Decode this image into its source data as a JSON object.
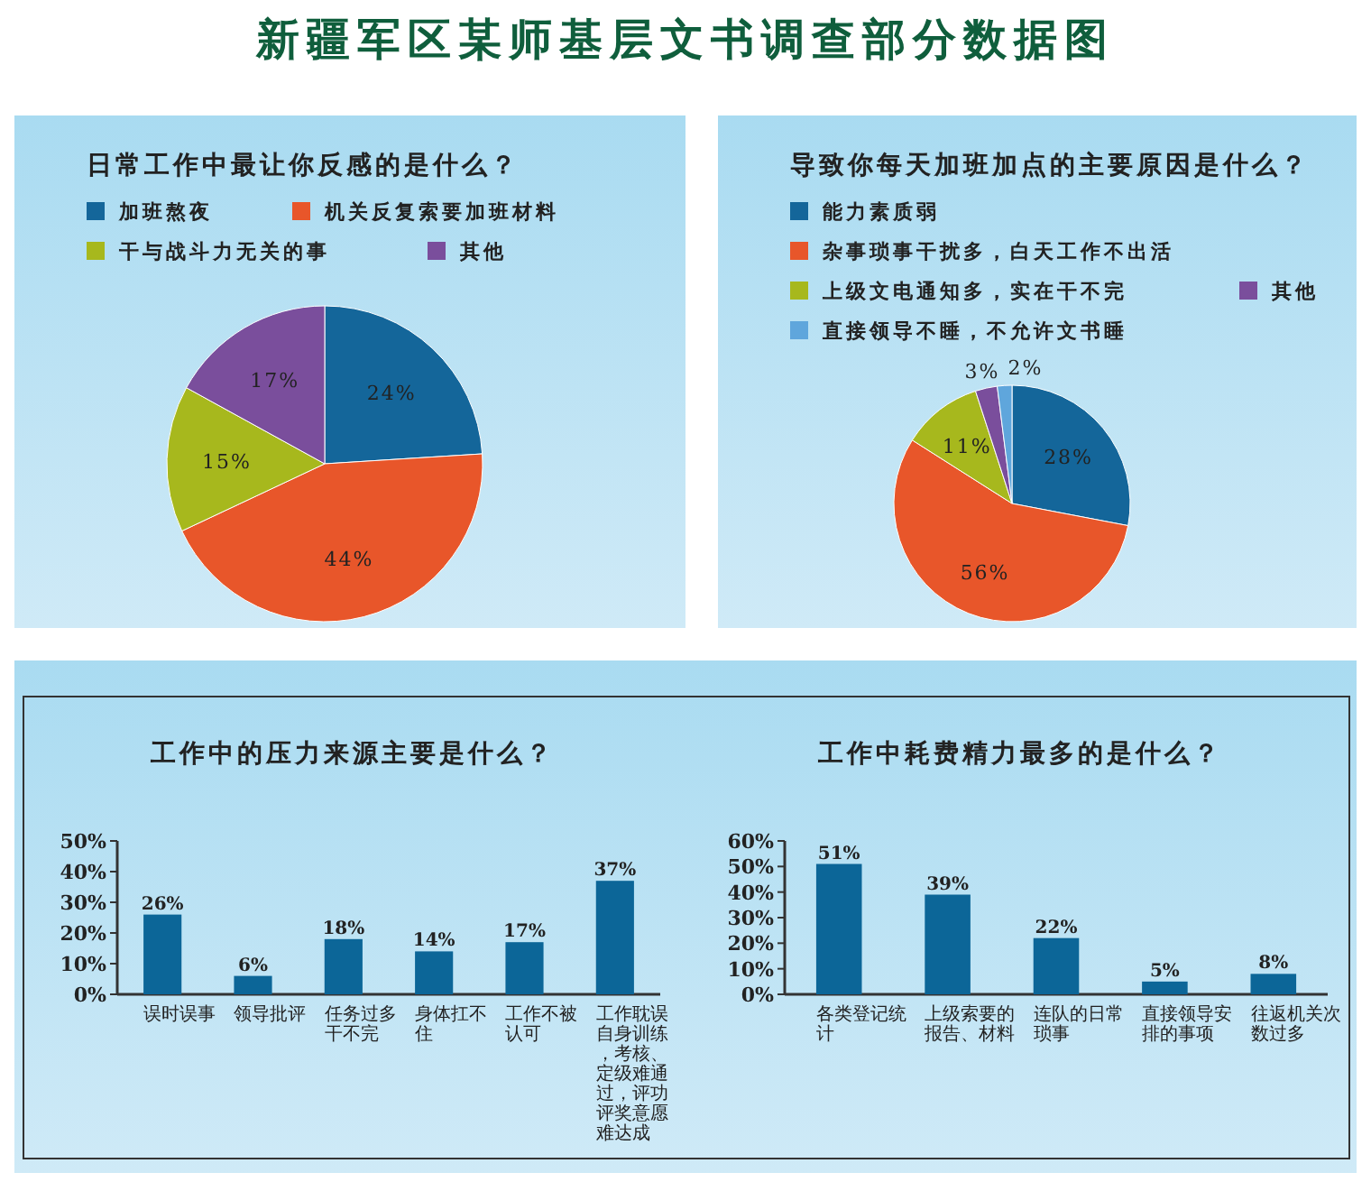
{
  "chart_data": [
    {
      "type": "other",
      "title": "新疆军区某师基层文书调查部分数据图"
    },
    {
      "type": "pie",
      "title": "日常工作中最让你反感的是什么？",
      "legend": "top",
      "categories": [
        "加班熬夜",
        "机关反复索要加班材料",
        "干与战斗力无关的事",
        "其他"
      ],
      "values": [
        24,
        44,
        15,
        17
      ],
      "value_labels": [
        "24%",
        "44%",
        "15%",
        "17%"
      ],
      "colors": [
        "#14669a",
        "#e8562a",
        "#a7b81d",
        "#7a4e9c"
      ]
    },
    {
      "type": "pie",
      "title": "导致你每天加班加点的主要原因是什么？",
      "legend": "top",
      "categories": [
        "能力素质弱",
        "杂事琐事干扰多，白天工作不出活",
        "上级文电通知多，实在干不完",
        "其他",
        "直接领导不睡，不允许文书睡"
      ],
      "values": [
        28,
        56,
        11,
        3,
        2
      ],
      "value_labels": [
        "28%",
        "56%",
        "11%",
        "3%",
        "2%"
      ],
      "colors": [
        "#14669a",
        "#e8562a",
        "#a7b81d",
        "#7a4e9c",
        "#5fa6dc"
      ]
    },
    {
      "type": "bar",
      "title": "工作中的压力来源主要是什么？",
      "categories": [
        "误时误事",
        "领导批评",
        "任务过多干不完",
        "身体扛不住",
        "工作不被认可",
        "工作耽误自身训练，考核、定级难通过，评功评奖意愿难达成"
      ],
      "values": [
        26,
        6,
        18,
        14,
        17,
        37
      ],
      "value_labels": [
        "26%",
        "6%",
        "18%",
        "14%",
        "17%",
        "37%"
      ],
      "color": "#0c6698",
      "ylim": [
        0,
        50
      ],
      "yticks": [
        {
          "value": 0,
          "label": "0%"
        },
        {
          "value": 10,
          "label": "10%"
        },
        {
          "value": 20,
          "label": "20%"
        },
        {
          "value": 30,
          "label": "30%"
        },
        {
          "value": 40,
          "label": "40%"
        },
        {
          "value": 50,
          "label": "50%"
        }
      ],
      "grid": false
    },
    {
      "type": "bar",
      "title": "工作中耗费精力最多的是什么？",
      "categories": [
        "各类登记统计",
        "上级索要的报告、材料",
        "连队的日常琐事",
        "直接领导安排的事项",
        "往返机关次数过多"
      ],
      "values": [
        51,
        39,
        22,
        5,
        8
      ],
      "value_labels": [
        "51%",
        "39%",
        "22%",
        "5%",
        "8%"
      ],
      "color": "#0c6698",
      "ylim": [
        0,
        60
      ],
      "yticks": [
        {
          "value": 0,
          "label": "0%"
        },
        {
          "value": 10,
          "label": "10%"
        },
        {
          "value": 20,
          "label": "20%"
        },
        {
          "value": 30,
          "label": "30%"
        },
        {
          "value": 40,
          "label": "40%"
        },
        {
          "value": 50,
          "label": "50%"
        },
        {
          "value": 60,
          "label": "60%"
        }
      ],
      "grid": false
    }
  ]
}
